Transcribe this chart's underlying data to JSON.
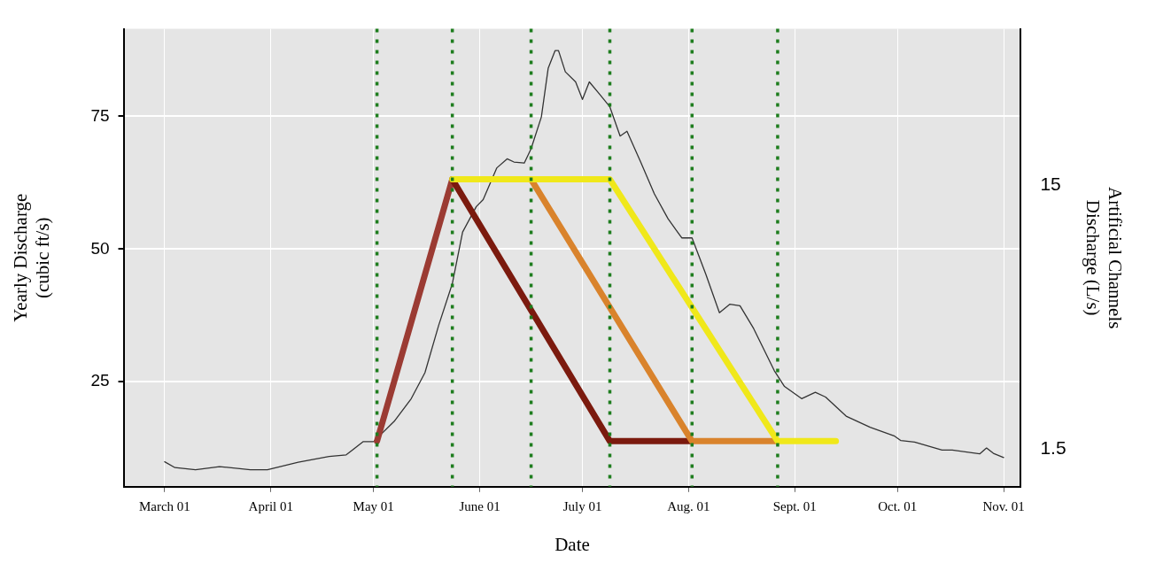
{
  "chart_data": {
    "type": "line",
    "xlabel": "Date",
    "ylabel": "Yearly Discharge\n(cubic ft/s)",
    "y2label": "Artificial Channels\nDischarge (L/s)",
    "xlim": [
      "--02-17",
      "--11-06"
    ],
    "xticks": [
      {
        "value": "--03-01",
        "label": "March 01"
      },
      {
        "value": "--04-01",
        "label": "April 01"
      },
      {
        "value": "--05-01",
        "label": "May 01"
      },
      {
        "value": "--06-01",
        "label": "June 01"
      },
      {
        "value": "--07-01",
        "label": "July 01"
      },
      {
        "value": "--08-01",
        "label": "Aug. 01"
      },
      {
        "value": "--09-01",
        "label": "Sept. 01"
      },
      {
        "value": "--10-01",
        "label": "Oct. 01"
      },
      {
        "value": "--11-01",
        "label": "Nov. 01"
      }
    ],
    "ylim": [
      5.2,
      91.5
    ],
    "yticks": [
      25,
      50,
      75
    ],
    "y2lim": [
      -0.43,
      23.0
    ],
    "y2ticks": [
      15,
      1.5
    ],
    "grid": true,
    "legend": false,
    "marker": "none",
    "line_style": "solid",
    "series": [
      {
        "color": "#333333",
        "x": [
          "--03-01",
          "--03-04",
          "--03-10",
          "--03-17",
          "--03-26",
          "--03-31",
          "--04-09",
          "--04-18",
          "--04-23",
          "--04-28",
          "--05-01",
          "--05-07",
          "--05-12",
          "--05-16",
          "--05-20",
          "--05-24",
          "--05-27",
          "--05-31",
          "--06-02",
          "--06-06",
          "--06-09",
          "--06-11",
          "--06-14",
          "--06-16",
          "--06-19",
          "--06-21",
          "--06-23",
          "--06-24",
          "--06-26",
          "--06-29",
          "--07-01",
          "--07-03",
          "--07-06",
          "--07-09",
          "--07-12",
          "--07-14",
          "--07-18",
          "--07-22",
          "--07-26",
          "--07-30",
          "--08-02",
          "--08-06",
          "--08-10",
          "--08-13",
          "--08-16",
          "--08-20",
          "--08-26",
          "--08-29",
          "--09-03",
          "--09-07",
          "--09-10",
          "--09-16",
          "--09-23",
          "--09-30",
          "--10-02",
          "--10-06",
          "--10-14",
          "--10-17",
          "--10-25",
          "--10-27",
          "--10-29",
          "--11-01"
        ],
        "values": [
          9.9,
          8.8,
          8.4,
          9.0,
          8.4,
          8.4,
          9.8,
          10.9,
          11.2,
          13.7,
          13.7,
          17.5,
          21.8,
          26.7,
          35.6,
          43.5,
          53.2,
          58.0,
          59.3,
          65.3,
          67.0,
          66.4,
          66.2,
          68.9,
          74.9,
          84.1,
          87.4,
          87.4,
          83.4,
          81.5,
          78.2,
          81.5,
          79.2,
          76.8,
          71.3,
          72.2,
          66.4,
          60.4,
          55.7,
          52.1,
          52.1,
          45.3,
          38.0,
          39.6,
          39.3,
          35.0,
          27.1,
          24.1,
          21.8,
          23.0,
          22.1,
          18.5,
          16.4,
          14.8,
          13.9,
          13.6,
          12.1,
          12.1,
          11.4,
          12.5,
          11.5,
          10.7
        ]
      },
      {
        "color": "#9b3b33",
        "axis": "y2",
        "x": [
          "--05-02",
          "--05-24"
        ],
        "values": [
          1.9,
          15.3
        ]
      },
      {
        "color": "#7b1a0e",
        "axis": "y2",
        "x": [
          "--05-24",
          "--07-09",
          "--08-02"
        ],
        "values": [
          15.3,
          1.9,
          1.9
        ]
      },
      {
        "color": "#d9832c",
        "axis": "y2",
        "x": [
          "--06-16",
          "--08-02",
          "--08-27"
        ],
        "values": [
          15.3,
          1.9,
          1.9
        ]
      },
      {
        "color": "#f0e81a",
        "axis": "y2",
        "x": [
          "--05-24",
          "--07-09",
          "--08-27",
          "--09-13"
        ],
        "values": [
          15.3,
          15.3,
          1.9,
          1.9
        ]
      }
    ],
    "ref_lines": [
      {
        "axis": "x",
        "value": "--05-02",
        "color": "#1e7d1e",
        "line_style": "dotted"
      },
      {
        "axis": "x",
        "value": "--05-24",
        "color": "#1e7d1e",
        "line_style": "dotted"
      },
      {
        "axis": "x",
        "value": "--06-16",
        "color": "#1e7d1e",
        "line_style": "dotted"
      },
      {
        "axis": "x",
        "value": "--07-09",
        "color": "#1e7d1e",
        "line_style": "dotted"
      },
      {
        "axis": "x",
        "value": "--08-02",
        "color": "#1e7d1e",
        "line_style": "dotted"
      },
      {
        "axis": "x",
        "value": "--08-27",
        "color": "#1e7d1e",
        "line_style": "dotted"
      }
    ]
  }
}
